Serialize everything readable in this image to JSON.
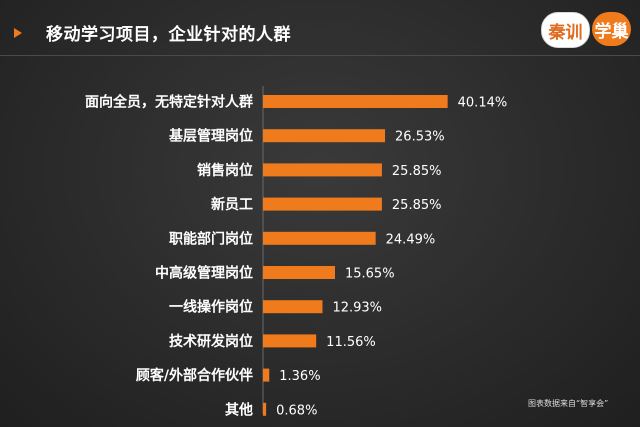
{
  "header": {
    "title": "移动学习项目，企业针对的人群",
    "logo_left": "秦训",
    "logo_right": "学巢"
  },
  "source_note": "图表数据来自“智享会”",
  "colors": {
    "accent": "#f07b1d",
    "text": "#ffffff",
    "background": "#2b2b2b"
  },
  "chart_data": {
    "type": "bar",
    "orientation": "horizontal",
    "title": "",
    "xlabel": "",
    "ylabel": "",
    "categories": [
      "面向全员，无特定针对人群",
      "基层管理岗位",
      "销售岗位",
      "新员工",
      "职能部门岗位",
      "中高级管理岗位",
      "一线操作岗位",
      "技术研发岗位",
      "顾客/外部合作伙伴",
      "其他"
    ],
    "values": [
      40.14,
      26.53,
      25.85,
      25.85,
      24.49,
      15.65,
      12.93,
      11.56,
      1.36,
      0.68
    ],
    "value_labels": [
      "40.14%",
      "26.53%",
      "25.85%",
      "25.85%",
      "24.49%",
      "15.65%",
      "12.93%",
      "11.56%",
      "1.36%",
      "0.68%"
    ],
    "unit": "%",
    "grid": false,
    "legend": "none"
  }
}
